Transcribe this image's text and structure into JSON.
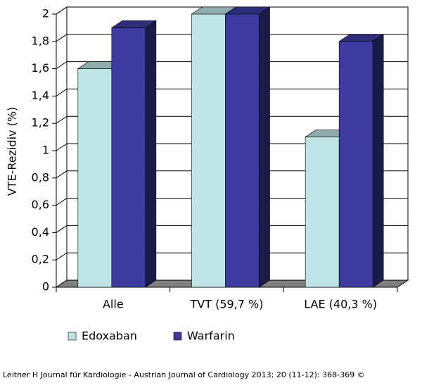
{
  "chart_data": {
    "type": "bar3d",
    "y_label": "VTE-Rezidiv (%)",
    "categories": [
      "Alle",
      "TVT (59,7 %)",
      "LAE (40,3 %)"
    ],
    "series": [
      {
        "name": "Edoxaban",
        "color": "#bfe4e6",
        "values": [
          1.6,
          2.0,
          1.1
        ]
      },
      {
        "name": "Warfarin",
        "color": "#3c3ca0",
        "values": [
          1.9,
          2.0,
          1.8
        ]
      }
    ],
    "ylim": [
      0,
      2
    ],
    "yticks": [
      0,
      {
        "value": 0.2,
        "label": "0,2"
      },
      {
        "value": 0.4,
        "label": "0,4"
      },
      {
        "value": 0.6,
        "label": "0,6"
      },
      {
        "value": 0.8,
        "label": "0,8"
      },
      1,
      {
        "value": 1.2,
        "label": "1,2"
      },
      {
        "value": 1.4,
        "label": "1,4"
      },
      {
        "value": 1.6,
        "label": "1,6"
      },
      {
        "value": 1.8,
        "label": "1,8"
      },
      2
    ],
    "grid": true,
    "source": "Leitner H Journal für Kardiologie - Austrian Journal of Cardiology 2013; 20 (11-12): 368-369 ©"
  }
}
